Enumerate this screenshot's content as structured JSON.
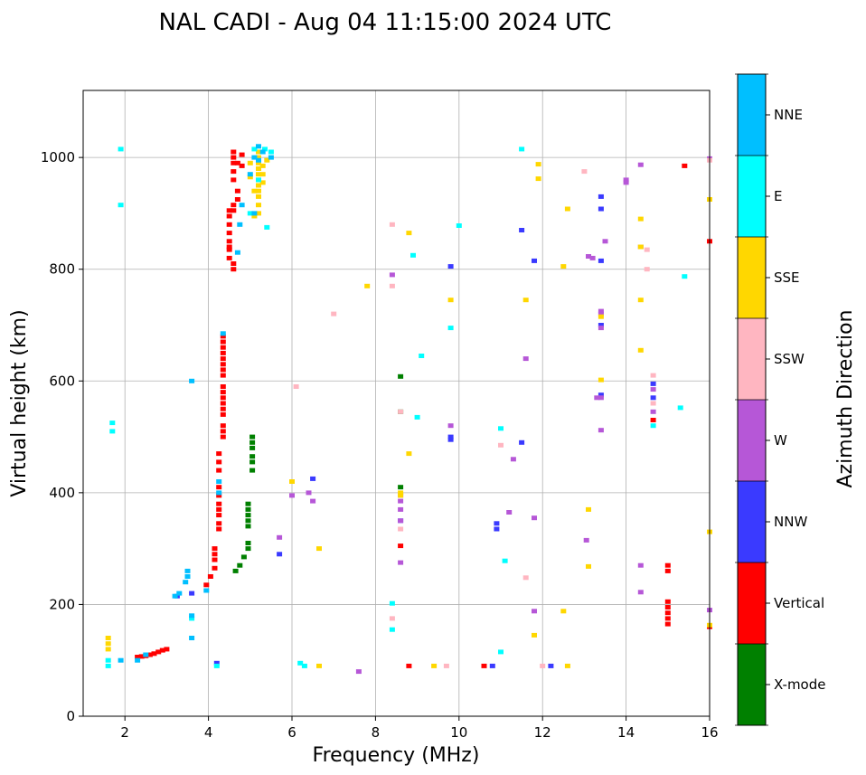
{
  "chart_data": {
    "type": "scatter",
    "title": "NAL CADI - Aug 04 11:15:00 2024 UTC",
    "xlabel": "Frequency (MHz)",
    "ylabel": "Virtual height (km)",
    "xlim": [
      1,
      16
    ],
    "ylim": [
      0,
      1120
    ],
    "xticks": [
      2,
      4,
      6,
      8,
      10,
      12,
      14,
      16
    ],
    "yticks": [
      0,
      200,
      400,
      600,
      800,
      1000
    ],
    "grid": true,
    "colorbar": {
      "label": "Azimuth Direction",
      "categories": [
        {
          "name": "X-mode",
          "color": "#008000"
        },
        {
          "name": "Vertical",
          "color": "#ff0000"
        },
        {
          "name": "NNW",
          "color": "#3a3aff"
        },
        {
          "name": "W",
          "color": "#b657d7"
        },
        {
          "name": "SSW",
          "color": "#ffb6c1"
        },
        {
          "name": "SSE",
          "color": "#ffd700"
        },
        {
          "name": "E",
          "color": "#00ffff"
        },
        {
          "name": "NNE",
          "color": "#00bfff"
        }
      ]
    },
    "series": [
      {
        "name": "X-mode",
        "points": [
          [
            5.05,
            500
          ],
          [
            5.05,
            490
          ],
          [
            5.05,
            480
          ],
          [
            5.05,
            465
          ],
          [
            5.05,
            455
          ],
          [
            5.05,
            440
          ],
          [
            4.95,
            380
          ],
          [
            4.95,
            370
          ],
          [
            4.95,
            360
          ],
          [
            4.95,
            350
          ],
          [
            4.95,
            340
          ],
          [
            4.95,
            310
          ],
          [
            4.95,
            300
          ],
          [
            4.85,
            285
          ],
          [
            4.75,
            270
          ],
          [
            4.65,
            260
          ],
          [
            8.6,
            608
          ],
          [
            8.6,
            545
          ],
          [
            8.6,
            410
          ]
        ]
      },
      {
        "name": "Vertical",
        "points": [
          [
            4.35,
            680
          ],
          [
            4.35,
            670
          ],
          [
            4.35,
            660
          ],
          [
            4.35,
            650
          ],
          [
            4.35,
            640
          ],
          [
            4.35,
            630
          ],
          [
            4.35,
            620
          ],
          [
            4.35,
            610
          ],
          [
            4.35,
            590
          ],
          [
            4.35,
            580
          ],
          [
            4.35,
            570
          ],
          [
            4.35,
            560
          ],
          [
            4.35,
            550
          ],
          [
            4.35,
            540
          ],
          [
            4.35,
            520
          ],
          [
            4.35,
            510
          ],
          [
            4.35,
            500
          ],
          [
            4.25,
            470
          ],
          [
            4.25,
            455
          ],
          [
            4.25,
            440
          ],
          [
            4.25,
            410
          ],
          [
            4.25,
            395
          ],
          [
            4.25,
            380
          ],
          [
            4.25,
            370
          ],
          [
            4.25,
            360
          ],
          [
            4.25,
            345
          ],
          [
            4.25,
            335
          ],
          [
            4.15,
            300
          ],
          [
            4.15,
            290
          ],
          [
            4.15,
            280
          ],
          [
            4.15,
            265
          ],
          [
            4.05,
            250
          ],
          [
            3.95,
            235
          ],
          [
            4.6,
            1010
          ],
          [
            4.6,
            1000
          ],
          [
            4.6,
            990
          ],
          [
            4.6,
            975
          ],
          [
            4.6,
            960
          ],
          [
            4.7,
            940
          ],
          [
            4.7,
            925
          ],
          [
            4.6,
            915
          ],
          [
            4.6,
            905
          ],
          [
            4.5,
            895
          ],
          [
            4.5,
            880
          ],
          [
            4.5,
            865
          ],
          [
            4.5,
            850
          ],
          [
            4.5,
            835
          ],
          [
            4.5,
            820
          ],
          [
            4.6,
            810
          ],
          [
            4.6,
            800
          ],
          [
            4.7,
            990
          ],
          [
            4.8,
            1005
          ],
          [
            4.8,
            985
          ],
          [
            4.5,
            905
          ],
          [
            4.5,
            840
          ],
          [
            3.0,
            120
          ],
          [
            2.9,
            118
          ],
          [
            2.8,
            115
          ],
          [
            2.7,
            112
          ],
          [
            2.6,
            110
          ],
          [
            2.5,
            108
          ],
          [
            2.4,
            107
          ],
          [
            2.3,
            106
          ],
          [
            15.0,
            270
          ],
          [
            15.0,
            260
          ],
          [
            15.0,
            205
          ],
          [
            15.0,
            195
          ],
          [
            15.0,
            185
          ],
          [
            15.0,
            175
          ],
          [
            15.0,
            165
          ],
          [
            15.4,
            985
          ],
          [
            16.0,
            850
          ],
          [
            8.8,
            90
          ],
          [
            10.6,
            90
          ],
          [
            14.65,
            530
          ],
          [
            8.6,
            305
          ],
          [
            16.0,
            160
          ]
        ]
      },
      {
        "name": "NNW",
        "points": [
          [
            13.4,
            930
          ],
          [
            13.4,
            908
          ],
          [
            13.4,
            700
          ],
          [
            13.4,
            575
          ],
          [
            11.5,
            870
          ],
          [
            10.9,
            345
          ],
          [
            10.9,
            335
          ],
          [
            11.5,
            490
          ],
          [
            10.8,
            90
          ],
          [
            9.8,
            805
          ],
          [
            9.8,
            500
          ],
          [
            9.8,
            495
          ],
          [
            11.8,
            815
          ],
          [
            12.2,
            90
          ],
          [
            13.4,
            815
          ],
          [
            8.6,
            350
          ],
          [
            6.5,
            425
          ],
          [
            5.7,
            290
          ],
          [
            3.25,
            215
          ],
          [
            3.6,
            220
          ],
          [
            14.65,
            595
          ],
          [
            14.65,
            570
          ],
          [
            4.2,
            95
          ]
        ]
      },
      {
        "name": "W",
        "points": [
          [
            14.0,
            960
          ],
          [
            14.0,
            955
          ],
          [
            14.35,
            987
          ],
          [
            14.35,
            840
          ],
          [
            14.35,
            222
          ],
          [
            14.35,
            270
          ],
          [
            13.4,
            725
          ],
          [
            13.4,
            720
          ],
          [
            13.4,
            695
          ],
          [
            13.4,
            570
          ],
          [
            13.4,
            512
          ],
          [
            13.3,
            570
          ],
          [
            13.1,
            823
          ],
          [
            13.2,
            820
          ],
          [
            13.5,
            850
          ],
          [
            13.05,
            315
          ],
          [
            9.8,
            520
          ],
          [
            11.6,
            640
          ],
          [
            11.8,
            188
          ],
          [
            11.8,
            355
          ],
          [
            11.3,
            460
          ],
          [
            11.2,
            365
          ],
          [
            8.6,
            385
          ],
          [
            8.6,
            395
          ],
          [
            8.6,
            370
          ],
          [
            8.6,
            350
          ],
          [
            8.6,
            275
          ],
          [
            8.4,
            790
          ],
          [
            7.6,
            80
          ],
          [
            6.5,
            385
          ],
          [
            6.4,
            400
          ],
          [
            6.0,
            395
          ],
          [
            5.7,
            320
          ],
          [
            16.0,
            998
          ],
          [
            16.0,
            190
          ],
          [
            14.65,
            585
          ],
          [
            14.65,
            545
          ]
        ]
      },
      {
        "name": "SSW",
        "points": [
          [
            8.4,
            880
          ],
          [
            8.4,
            770
          ],
          [
            8.6,
            335
          ],
          [
            8.4,
            175
          ],
          [
            11.0,
            485
          ],
          [
            11.6,
            248
          ],
          [
            9.7,
            90
          ],
          [
            13.0,
            975
          ],
          [
            12.0,
            90
          ],
          [
            8.6,
            545
          ],
          [
            16.0,
            995
          ],
          [
            7.0,
            720
          ],
          [
            6.1,
            590
          ],
          [
            14.65,
            610
          ],
          [
            14.65,
            560
          ],
          [
            14.5,
            800
          ],
          [
            14.5,
            835
          ]
        ]
      },
      {
        "name": "SSE",
        "points": [
          [
            5.2,
            1010
          ],
          [
            5.2,
            1000
          ],
          [
            5.2,
            990
          ],
          [
            5.2,
            980
          ],
          [
            5.2,
            970
          ],
          [
            5.2,
            960
          ],
          [
            5.2,
            950
          ],
          [
            5.2,
            940
          ],
          [
            5.2,
            930
          ],
          [
            5.2,
            915
          ],
          [
            5.2,
            900
          ],
          [
            5.1,
            895
          ],
          [
            5.3,
            985
          ],
          [
            5.3,
            970
          ],
          [
            5.3,
            955
          ],
          [
            5.4,
            995
          ],
          [
            5.0,
            990
          ],
          [
            5.0,
            965
          ],
          [
            5.1,
            940
          ],
          [
            1.6,
            140
          ],
          [
            1.6,
            130
          ],
          [
            1.6,
            120
          ],
          [
            12.6,
            908
          ],
          [
            12.5,
            188
          ],
          [
            12.6,
            90
          ],
          [
            11.9,
            988
          ],
          [
            11.9,
            962
          ],
          [
            8.8,
            865
          ],
          [
            8.6,
            400
          ],
          [
            8.8,
            470
          ],
          [
            8.6,
            395
          ],
          [
            9.4,
            90
          ],
          [
            13.1,
            370
          ],
          [
            13.1,
            268
          ],
          [
            13.4,
            602
          ],
          [
            13.4,
            715
          ],
          [
            12.5,
            805
          ],
          [
            14.35,
            890
          ],
          [
            14.35,
            745
          ],
          [
            14.35,
            655
          ],
          [
            14.35,
            840
          ],
          [
            16.0,
            925
          ],
          [
            16.0,
            330
          ],
          [
            16.0,
            163
          ],
          [
            6.65,
            300
          ],
          [
            6.65,
            90
          ],
          [
            6.0,
            420
          ],
          [
            9.8,
            745
          ],
          [
            7.8,
            770
          ],
          [
            11.8,
            145
          ],
          [
            11.6,
            745
          ]
        ]
      },
      {
        "name": "E",
        "points": [
          [
            5.35,
            1015
          ],
          [
            5.1,
            1015
          ],
          [
            5.5,
            1010
          ],
          [
            5.2,
            960
          ],
          [
            5.0,
            900
          ],
          [
            5.4,
            875
          ],
          [
            15.4,
            787
          ],
          [
            15.3,
            552
          ],
          [
            14.65,
            520
          ],
          [
            11.0,
            515
          ],
          [
            11.0,
            115
          ],
          [
            11.1,
            278
          ],
          [
            10.0,
            878
          ],
          [
            9.8,
            695
          ],
          [
            9.1,
            645
          ],
          [
            9.0,
            535
          ],
          [
            8.9,
            825
          ],
          [
            8.4,
            202
          ],
          [
            8.4,
            155
          ],
          [
            6.3,
            90
          ],
          [
            6.2,
            95
          ],
          [
            1.7,
            525
          ],
          [
            1.7,
            510
          ],
          [
            1.6,
            100
          ],
          [
            1.6,
            90
          ],
          [
            3.6,
            175
          ],
          [
            4.2,
            90
          ],
          [
            11.5,
            1015
          ],
          [
            1.9,
            1015
          ],
          [
            1.9,
            915
          ]
        ]
      },
      {
        "name": "NNE",
        "points": [
          [
            5.1,
            1000
          ],
          [
            5.3,
            1010
          ],
          [
            5.2,
            1020
          ],
          [
            5.2,
            995
          ],
          [
            5.5,
            1000
          ],
          [
            5.0,
            970
          ],
          [
            4.8,
            915
          ],
          [
            4.75,
            880
          ],
          [
            4.7,
            830
          ],
          [
            5.1,
            900
          ],
          [
            3.5,
            260
          ],
          [
            3.5,
            250
          ],
          [
            3.45,
            240
          ],
          [
            3.3,
            220
          ],
          [
            3.2,
            215
          ],
          [
            3.6,
            180
          ],
          [
            3.6,
            140
          ],
          [
            3.6,
            600
          ],
          [
            1.9,
            100
          ],
          [
            2.3,
            100
          ],
          [
            2.5,
            110
          ],
          [
            4.35,
            685
          ],
          [
            4.25,
            420
          ],
          [
            4.25,
            400
          ],
          [
            3.95,
            225
          ]
        ]
      }
    ]
  }
}
